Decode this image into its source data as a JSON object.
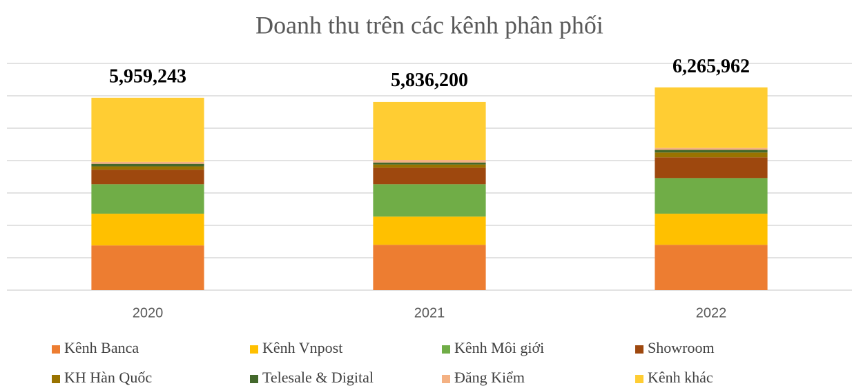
{
  "chart_data": {
    "type": "stacked_bar",
    "title": "Doanh thu trên các kênh phân phối",
    "categories": [
      "2020",
      "2021",
      "2022"
    ],
    "series": [
      {
        "name": "Kênh Banca",
        "color": "#ed7d31",
        "values": [
          1380000,
          1400000,
          1400000
        ]
      },
      {
        "name": "Kênh Vnpost",
        "color": "#ffc000",
        "values": [
          980000,
          870000,
          960000
        ]
      },
      {
        "name": "Kênh Môi giới",
        "color": "#70ad47",
        "values": [
          910000,
          1000000,
          1100000
        ]
      },
      {
        "name": "Showroom",
        "color": "#9e480e",
        "values": [
          450000,
          510000,
          640000
        ]
      },
      {
        "name": "KH Hàn Quốc",
        "color": "#997300",
        "values": [
          100000,
          100000,
          150000
        ]
      },
      {
        "name": "Telesale & Digital",
        "color": "#43682b",
        "values": [
          80000,
          60000,
          80000
        ]
      },
      {
        "name": "Đăng Kiểm",
        "color": "#f4b183",
        "values": [
          60000,
          80000,
          60000
        ]
      },
      {
        "name": "Kênh khác",
        "color": "#ffcd33",
        "values": [
          1980000,
          1790000,
          1870000
        ]
      }
    ],
    "totals": [
      5959243,
      5836200,
      6265962
    ],
    "total_labels": [
      "5,959,243",
      "5,836,200",
      "6,265,962"
    ],
    "ylim": [
      0,
      7000000
    ],
    "yticks": [
      0,
      1000000,
      2000000,
      3000000,
      4000000,
      5000000,
      6000000,
      7000000
    ],
    "grid": true
  }
}
